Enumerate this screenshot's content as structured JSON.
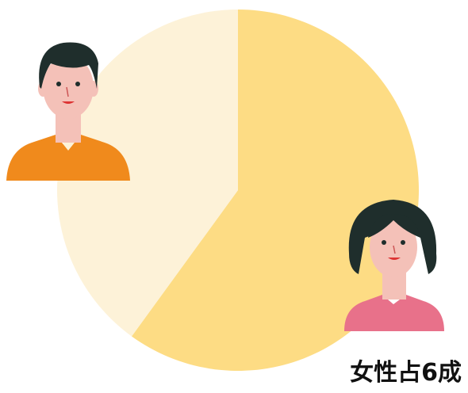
{
  "chart_data": {
    "type": "pie",
    "title": "女性占6成",
    "values": [
      60,
      40
    ],
    "colors": [
      "#fddc84",
      "#fdf2d8"
    ],
    "start_angle": 0,
    "direction": "clockwise"
  }
}
